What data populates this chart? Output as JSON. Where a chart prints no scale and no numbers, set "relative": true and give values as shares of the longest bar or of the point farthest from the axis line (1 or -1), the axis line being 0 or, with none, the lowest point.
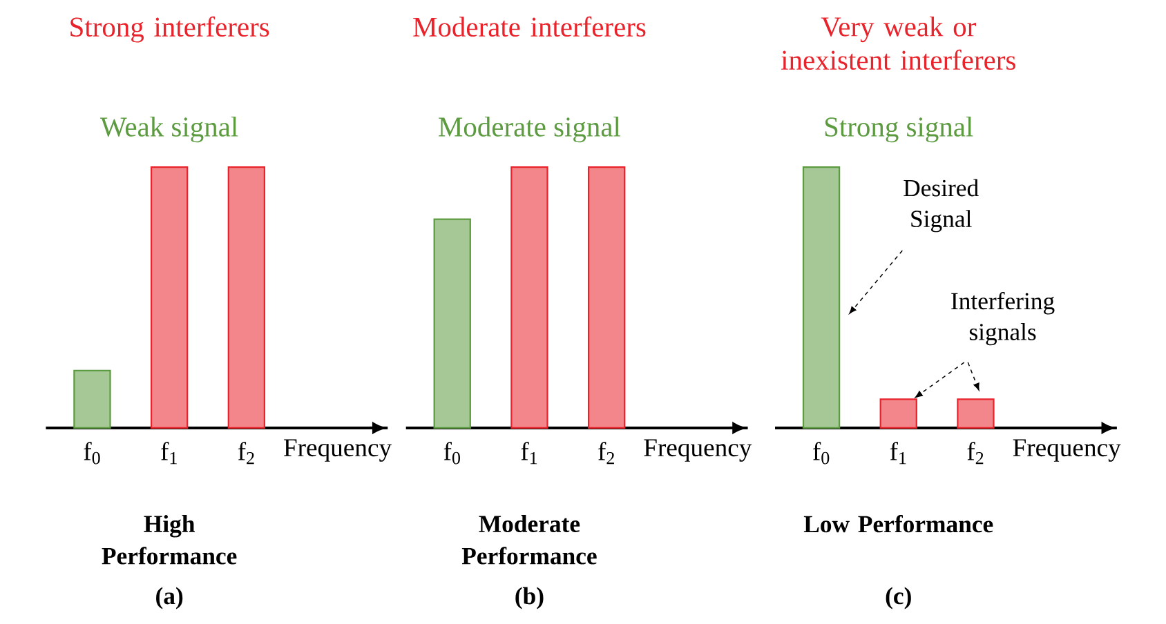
{
  "chart_data": [
    {
      "type": "bar",
      "title": "Strong interferers",
      "subtitle": "Weak signal",
      "xlabel": "Frequency",
      "categories": [
        "f$_{0}$",
        "f$_{1}$",
        "f$_{2}$"
      ],
      "values": [
        0.22,
        1,
        1
      ],
      "colors": [
        "#5c9b40",
        "#e8232b",
        "#e8232b"
      ],
      "relative": true,
      "annotations": [
        "High Performance",
        "(a)"
      ]
    },
    {
      "type": "bar",
      "title": "Moderate interferers",
      "subtitle": "Moderate signal",
      "xlabel": "Frequency",
      "categories": [
        "f$_{0}$",
        "f$_{1}$",
        "f$_{2}$"
      ],
      "values": [
        0.8,
        1,
        1
      ],
      "colors": [
        "#5c9b40",
        "#e8232b",
        "#e8232b"
      ],
      "relative": true,
      "annotations": [
        "Moderate Performance",
        "(b)"
      ]
    },
    {
      "type": "bar",
      "title": "Very weak or inexistent interferers",
      "subtitle": "Strong signal",
      "xlabel": "Frequency",
      "categories": [
        "f$_{0}$",
        "f$_{1}$",
        "f$_{2}$"
      ],
      "values": [
        1,
        0.11,
        0.11
      ],
      "colors": [
        "#5c9b40",
        "#e8232b",
        "#e8232b"
      ],
      "relative": true,
      "annotations": [
        "Low Performance",
        "(c)",
        "Desired Signal",
        "Interfering signals"
      ]
    }
  ]
}
